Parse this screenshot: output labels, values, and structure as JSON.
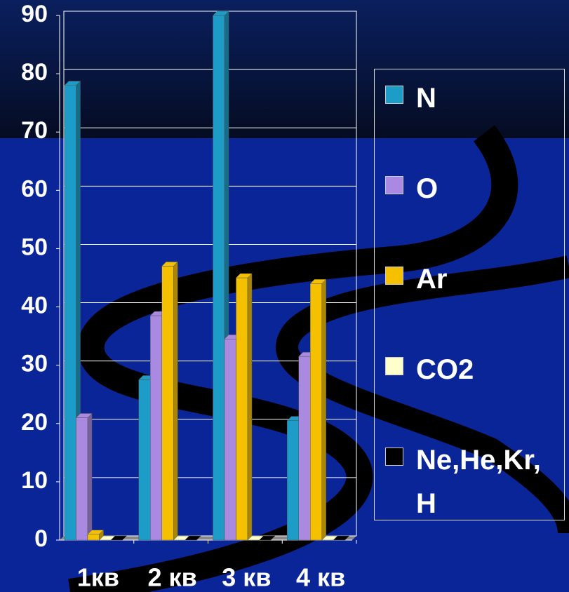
{
  "chart_data": {
    "type": "bar3d",
    "categories": [
      "1кв",
      "2 кв",
      "3 кв",
      "4 кв"
    ],
    "series": [
      {
        "name": "N",
        "color": "#1c9cc6",
        "values": [
          78,
          27.5,
          90,
          20.5
        ]
      },
      {
        "name": "O",
        "color": "#a98ae0",
        "values": [
          21,
          38.5,
          34.5,
          31.5
        ]
      },
      {
        "name": "Ar",
        "color": "#f5c000",
        "values": [
          1,
          47,
          45,
          44
        ]
      },
      {
        "name": "CO2",
        "color": "#ffffcc",
        "values": [
          0,
          0,
          0,
          0
        ]
      },
      {
        "name": "Ne,He,Kr, H",
        "color": "#000000",
        "values": [
          0,
          0,
          0,
          0
        ]
      }
    ],
    "ylim": [
      0,
      90
    ],
    "yticks": [
      0,
      10,
      20,
      30,
      40,
      50,
      60,
      70,
      80,
      90
    ],
    "grid": true,
    "legend": "right"
  }
}
